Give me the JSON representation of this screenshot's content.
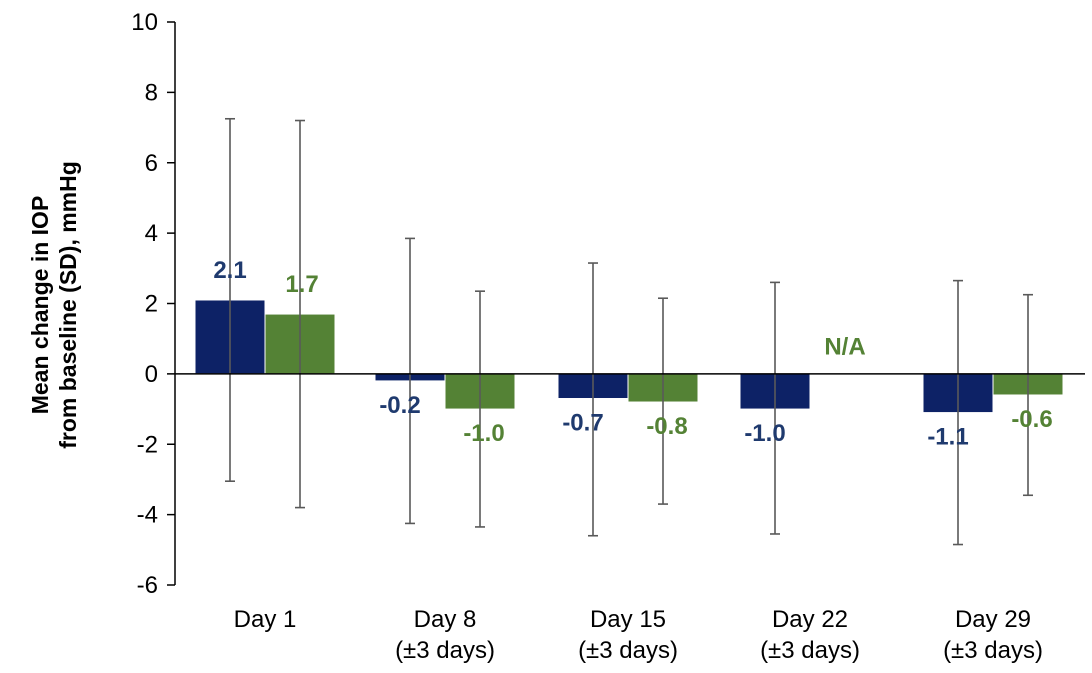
{
  "chart_data": {
    "type": "bar",
    "title": "",
    "ylabel_lines": [
      "Mean change in IOP",
      "from baseline (SD), mmHg"
    ],
    "xlabel": "",
    "ylim": [
      -6,
      10
    ],
    "yticks": [
      -6,
      -4,
      -2,
      0,
      2,
      4,
      6,
      8,
      10
    ],
    "ytick_labels": [
      "-6",
      "-4",
      "-2",
      "0",
      "2",
      "4",
      "6",
      "8",
      "10"
    ],
    "categories": [
      [
        "Day 1"
      ],
      [
        "Day 8",
        "(±3 days)"
      ],
      [
        "Day 15",
        "(±3 days)"
      ],
      [
        "Day 22",
        "(±3 days)"
      ],
      [
        "Day 29",
        "(±3 days)"
      ]
    ],
    "series": [
      {
        "color": "#0d2266",
        "label_color": "#1f3a6e",
        "values": [
          2.1,
          -0.2,
          -0.7,
          -1.0,
          -1.1
        ],
        "labels": [
          "2.1",
          "-0.2",
          "-0.7",
          "-1.0",
          "-1.1"
        ],
        "error_low": [
          -3.05,
          -4.25,
          -4.6,
          -4.55,
          -4.85
        ],
        "error_high": [
          7.25,
          3.85,
          3.15,
          2.6,
          2.65
        ]
      },
      {
        "color": "#548235",
        "label_color": "#548235",
        "values": [
          1.7,
          -1.0,
          -0.8,
          null,
          -0.6
        ],
        "labels": [
          "1.7",
          "-1.0",
          "-0.8",
          "N/A",
          "-0.6"
        ],
        "error_low": [
          -3.8,
          -4.35,
          -3.7,
          null,
          -3.45
        ],
        "error_high": [
          7.2,
          2.35,
          2.15,
          null,
          2.25
        ]
      }
    ],
    "grid": false,
    "legend": "none"
  }
}
